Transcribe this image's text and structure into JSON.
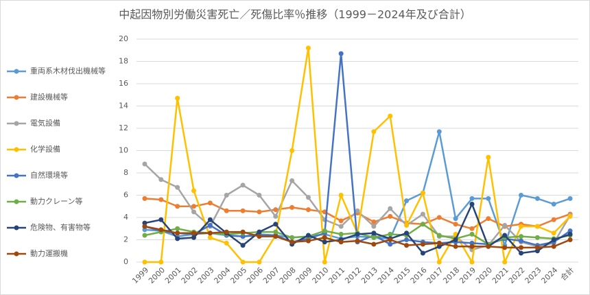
{
  "chart_data": {
    "type": "line",
    "title": "中起因物別労働災害死亡／死傷比率％推移（1999－2024年及び合計）",
    "categories": [
      "1999",
      "2000",
      "2001",
      "2002",
      "2003",
      "2004",
      "2005",
      "2006",
      "2007",
      "2008",
      "2009",
      "2010",
      "2011",
      "2012",
      "2013",
      "2014",
      "2015",
      "2016",
      "2017",
      "2018",
      "2019",
      "2020",
      "2021",
      "2022",
      "2023",
      "2024",
      "合計"
    ],
    "ylim": [
      0,
      20
    ],
    "yticks": [
      0,
      2,
      4,
      6,
      8,
      10,
      12,
      14,
      16,
      18,
      20
    ],
    "grid": true,
    "legend": "left",
    "series": [
      {
        "name": "重両系木材伐出機械等",
        "color": "#5b9bd5",
        "values": [
          2.9,
          2.8,
          2.3,
          2.5,
          2.6,
          2.4,
          2.3,
          2.5,
          2.4,
          2.2,
          2.3,
          2.5,
          2.1,
          2.3,
          2.2,
          2.1,
          5.5,
          6.2,
          11.7,
          3.9,
          5.7,
          5.7,
          1.5,
          6.0,
          5.7,
          5.2,
          5.7
        ]
      },
      {
        "name": "建設機械等",
        "color": "#ed7d31",
        "values": [
          5.7,
          5.6,
          5.0,
          5.0,
          5.3,
          4.6,
          4.6,
          4.5,
          4.7,
          4.9,
          4.7,
          4.5,
          3.7,
          4.4,
          3.6,
          4.1,
          3.5,
          3.4,
          4.0,
          3.4,
          3.0,
          3.9,
          3.2,
          3.4,
          3.2,
          3.8,
          4.3
        ]
      },
      {
        "name": "電気設備",
        "color": "#a5a5a5",
        "values": [
          8.8,
          7.4,
          6.7,
          4.5,
          3.2,
          6.0,
          6.9,
          6.0,
          4.1,
          7.3,
          5.8,
          3.8,
          3.2,
          4.6,
          3.2,
          4.8,
          3.3,
          4.3,
          2.3,
          2.3,
          1.1,
          1.5,
          3.3,
          1.8,
          1.4,
          1.7,
          4.2
        ]
      },
      {
        "name": "化学設備",
        "color": "#ffc000",
        "values": [
          0,
          0,
          14.7,
          6.4,
          2.2,
          1.7,
          0,
          0,
          2.4,
          10.0,
          19.2,
          0,
          6.0,
          2.6,
          11.7,
          13.1,
          3.3,
          6.2,
          0,
          2.5,
          0,
          9.4,
          0,
          3.2,
          3.2,
          2.6,
          4.1
        ]
      },
      {
        "name": "自然環境等",
        "color": "#4472c4",
        "values": [
          3.2,
          2.8,
          2.6,
          2.5,
          3.3,
          2.4,
          2.3,
          2.4,
          2.4,
          1.8,
          2.1,
          2.6,
          18.7,
          1.8,
          2.4,
          1.6,
          2.0,
          1.8,
          1.7,
          1.8,
          1.7,
          1.6,
          2.1,
          1.9,
          1.5,
          1.8,
          2.8
        ]
      },
      {
        "name": "動力クレーン等",
        "color": "#70ad47",
        "values": [
          2.4,
          2.7,
          3.0,
          2.7,
          2.6,
          2.5,
          2.6,
          2.7,
          2.7,
          2.2,
          2.3,
          2.8,
          2.5,
          2.6,
          2.2,
          2.5,
          2.4,
          3.4,
          2.4,
          2.1,
          2.5,
          1.6,
          2.2,
          2.3,
          2.2,
          2.1,
          2.4
        ]
      },
      {
        "name": "危険物、有害物等",
        "color": "#264478",
        "values": [
          3.5,
          3.8,
          2.1,
          2.2,
          3.8,
          2.6,
          1.5,
          2.7,
          3.4,
          1.6,
          2.4,
          1.8,
          2.0,
          2.5,
          2.6,
          2.1,
          2.6,
          0.8,
          1.4,
          2.0,
          5.2,
          1.4,
          2.4,
          0.8,
          1.0,
          2.0,
          2.5
        ]
      },
      {
        "name": "動力運搬機",
        "color": "#9e480e",
        "values": [
          3.2,
          2.9,
          2.6,
          2.6,
          2.6,
          2.7,
          2.7,
          2.3,
          2.3,
          1.8,
          1.9,
          2.2,
          1.8,
          1.9,
          1.6,
          2.0,
          1.5,
          1.6,
          1.7,
          1.4,
          1.4,
          1.4,
          1.3,
          1.3,
          1.3,
          1.4,
          2.0
        ]
      }
    ]
  }
}
